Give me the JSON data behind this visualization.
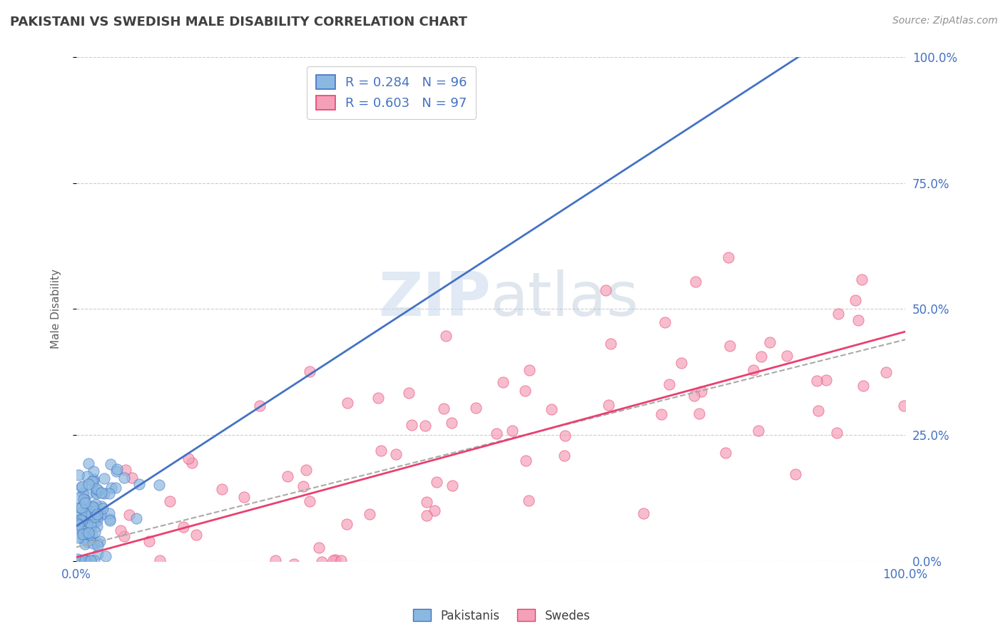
{
  "title": "PAKISTANI VS SWEDISH MALE DISABILITY CORRELATION CHART",
  "source": "Source: ZipAtlas.com",
  "ylabel": "Male Disability",
  "xlabel": "",
  "xlim": [
    0,
    1.0
  ],
  "ylim": [
    0,
    1.0
  ],
  "xtick_labels": [
    "0.0%",
    "100.0%"
  ],
  "ytick_labels": [
    "0.0%",
    "25.0%",
    "50.0%",
    "75.0%",
    "100.0%"
  ],
  "ytick_positions": [
    0.0,
    0.25,
    0.5,
    0.75,
    1.0
  ],
  "legend1_R": "0.284",
  "legend1_N": "96",
  "legend2_R": "0.603",
  "legend2_N": "97",
  "color_pakistani": "#8ab8e0",
  "color_swede": "#f4a0b8",
  "color_line_pakistani": "#4472c4",
  "color_line_swede": "#e84070",
  "color_title": "#404040",
  "background_color": "#ffffff",
  "grid_color": "#cccccc",
  "watermark_color": "#c8d8ec",
  "seed_pakistani": 42,
  "seed_swede": 77,
  "N_pakistani": 96,
  "N_swede": 97,
  "R_pakistani": 0.284,
  "R_swede": 0.603
}
